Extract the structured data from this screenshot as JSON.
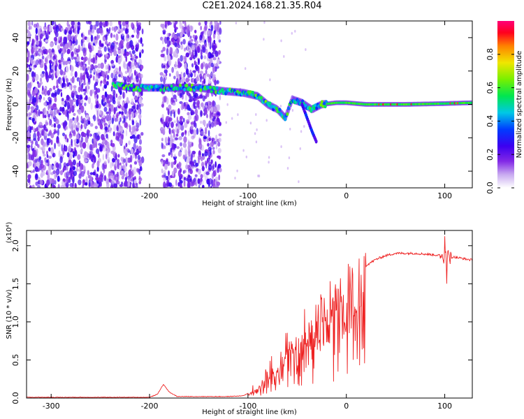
{
  "title": "C2E1.2024.168.21.35.R04",
  "chart_data": [
    {
      "type": "heatmap",
      "xlabel": "Height of straight line (km)",
      "ylabel": "Frequency (Hz)",
      "xlim": [
        -325,
        128
      ],
      "ylim": [
        -50,
        50
      ],
      "xticks": [
        -300,
        -200,
        -100,
        0,
        100
      ],
      "yticks": [
        -40,
        -20,
        0,
        20,
        40
      ],
      "colorbar": {
        "label": "Normalized spectral amplitude",
        "range": [
          0,
          1
        ],
        "ticks": [
          "0.0",
          "0.2",
          "0.4",
          "0.6",
          "0.8"
        ],
        "tick_values": [
          0,
          0.2,
          0.4,
          0.6,
          0.8
        ]
      },
      "noise_regions": [
        [
          -325,
          -207
        ],
        [
          -188,
          -128
        ]
      ],
      "ridge": [
        {
          "x": -237,
          "y": 12
        },
        {
          "x": -220,
          "y": 10
        },
        {
          "x": -200,
          "y": 10
        },
        {
          "x": -180,
          "y": 10
        },
        {
          "x": -150,
          "y": 10
        },
        {
          "x": -125,
          "y": 8
        },
        {
          "x": -105,
          "y": 7
        },
        {
          "x": -90,
          "y": 5
        },
        {
          "x": -80,
          "y": 0
        },
        {
          "x": -70,
          "y": -3
        },
        {
          "x": -62,
          "y": -8
        },
        {
          "x": -55,
          "y": 3
        },
        {
          "x": -45,
          "y": 1
        },
        {
          "x": -35,
          "y": -3
        },
        {
          "x": -25,
          "y": 0
        },
        {
          "x": -10,
          "y": 1
        },
        {
          "x": 0,
          "y": 1
        },
        {
          "x": 20,
          "y": 0
        },
        {
          "x": 60,
          "y": 0
        },
        {
          "x": 100,
          "y": 0.5
        },
        {
          "x": 128,
          "y": 1
        }
      ],
      "branch": [
        {
          "x": -45,
          "y": 0
        },
        {
          "x": -40,
          "y": -8
        },
        {
          "x": -35,
          "y": -16
        },
        {
          "x": -30,
          "y": -23
        }
      ]
    },
    {
      "type": "line",
      "xlabel": "Height of straight line (km)",
      "ylabel": "SNR (10 * v/v)",
      "y_multiplier": "(x10⁴)",
      "xlim": [
        -325,
        128
      ],
      "ylim": [
        0,
        2.2
      ],
      "xticks": [
        -300,
        -200,
        -100,
        0,
        100
      ],
      "yticks": [
        "0.0",
        "0.5",
        "1.0",
        "1.5",
        "2.0"
      ],
      "ytick_values": [
        0,
        0.5,
        1.0,
        1.5,
        2.0
      ],
      "line_color": "#ee2222",
      "envelope": [
        [
          -325,
          0.01
        ],
        [
          -200,
          0.01
        ],
        [
          -192,
          0.05
        ],
        [
          -186,
          0.18
        ],
        [
          -180,
          0.08
        ],
        [
          -172,
          0.02
        ],
        [
          -120,
          0.02
        ],
        [
          -105,
          0.03
        ],
        [
          -100,
          0.06
        ],
        [
          -92,
          0.12
        ],
        [
          -80,
          0.28
        ],
        [
          -70,
          0.45
        ],
        [
          -60,
          0.65
        ],
        [
          -50,
          0.82
        ],
        [
          -40,
          0.98
        ],
        [
          -30,
          1.1
        ],
        [
          -20,
          1.25
        ],
        [
          -10,
          1.38
        ],
        [
          0,
          1.5
        ],
        [
          10,
          1.65
        ],
        [
          20,
          1.74
        ],
        [
          30,
          1.82
        ],
        [
          40,
          1.87
        ],
        [
          50,
          1.9
        ],
        [
          70,
          1.9
        ],
        [
          90,
          1.88
        ],
        [
          100,
          1.86
        ],
        [
          110,
          1.85
        ],
        [
          128,
          1.81
        ]
      ],
      "peaks": [
        [
          100,
          2.14
        ],
        [
          102,
          1.52
        ]
      ]
    }
  ]
}
